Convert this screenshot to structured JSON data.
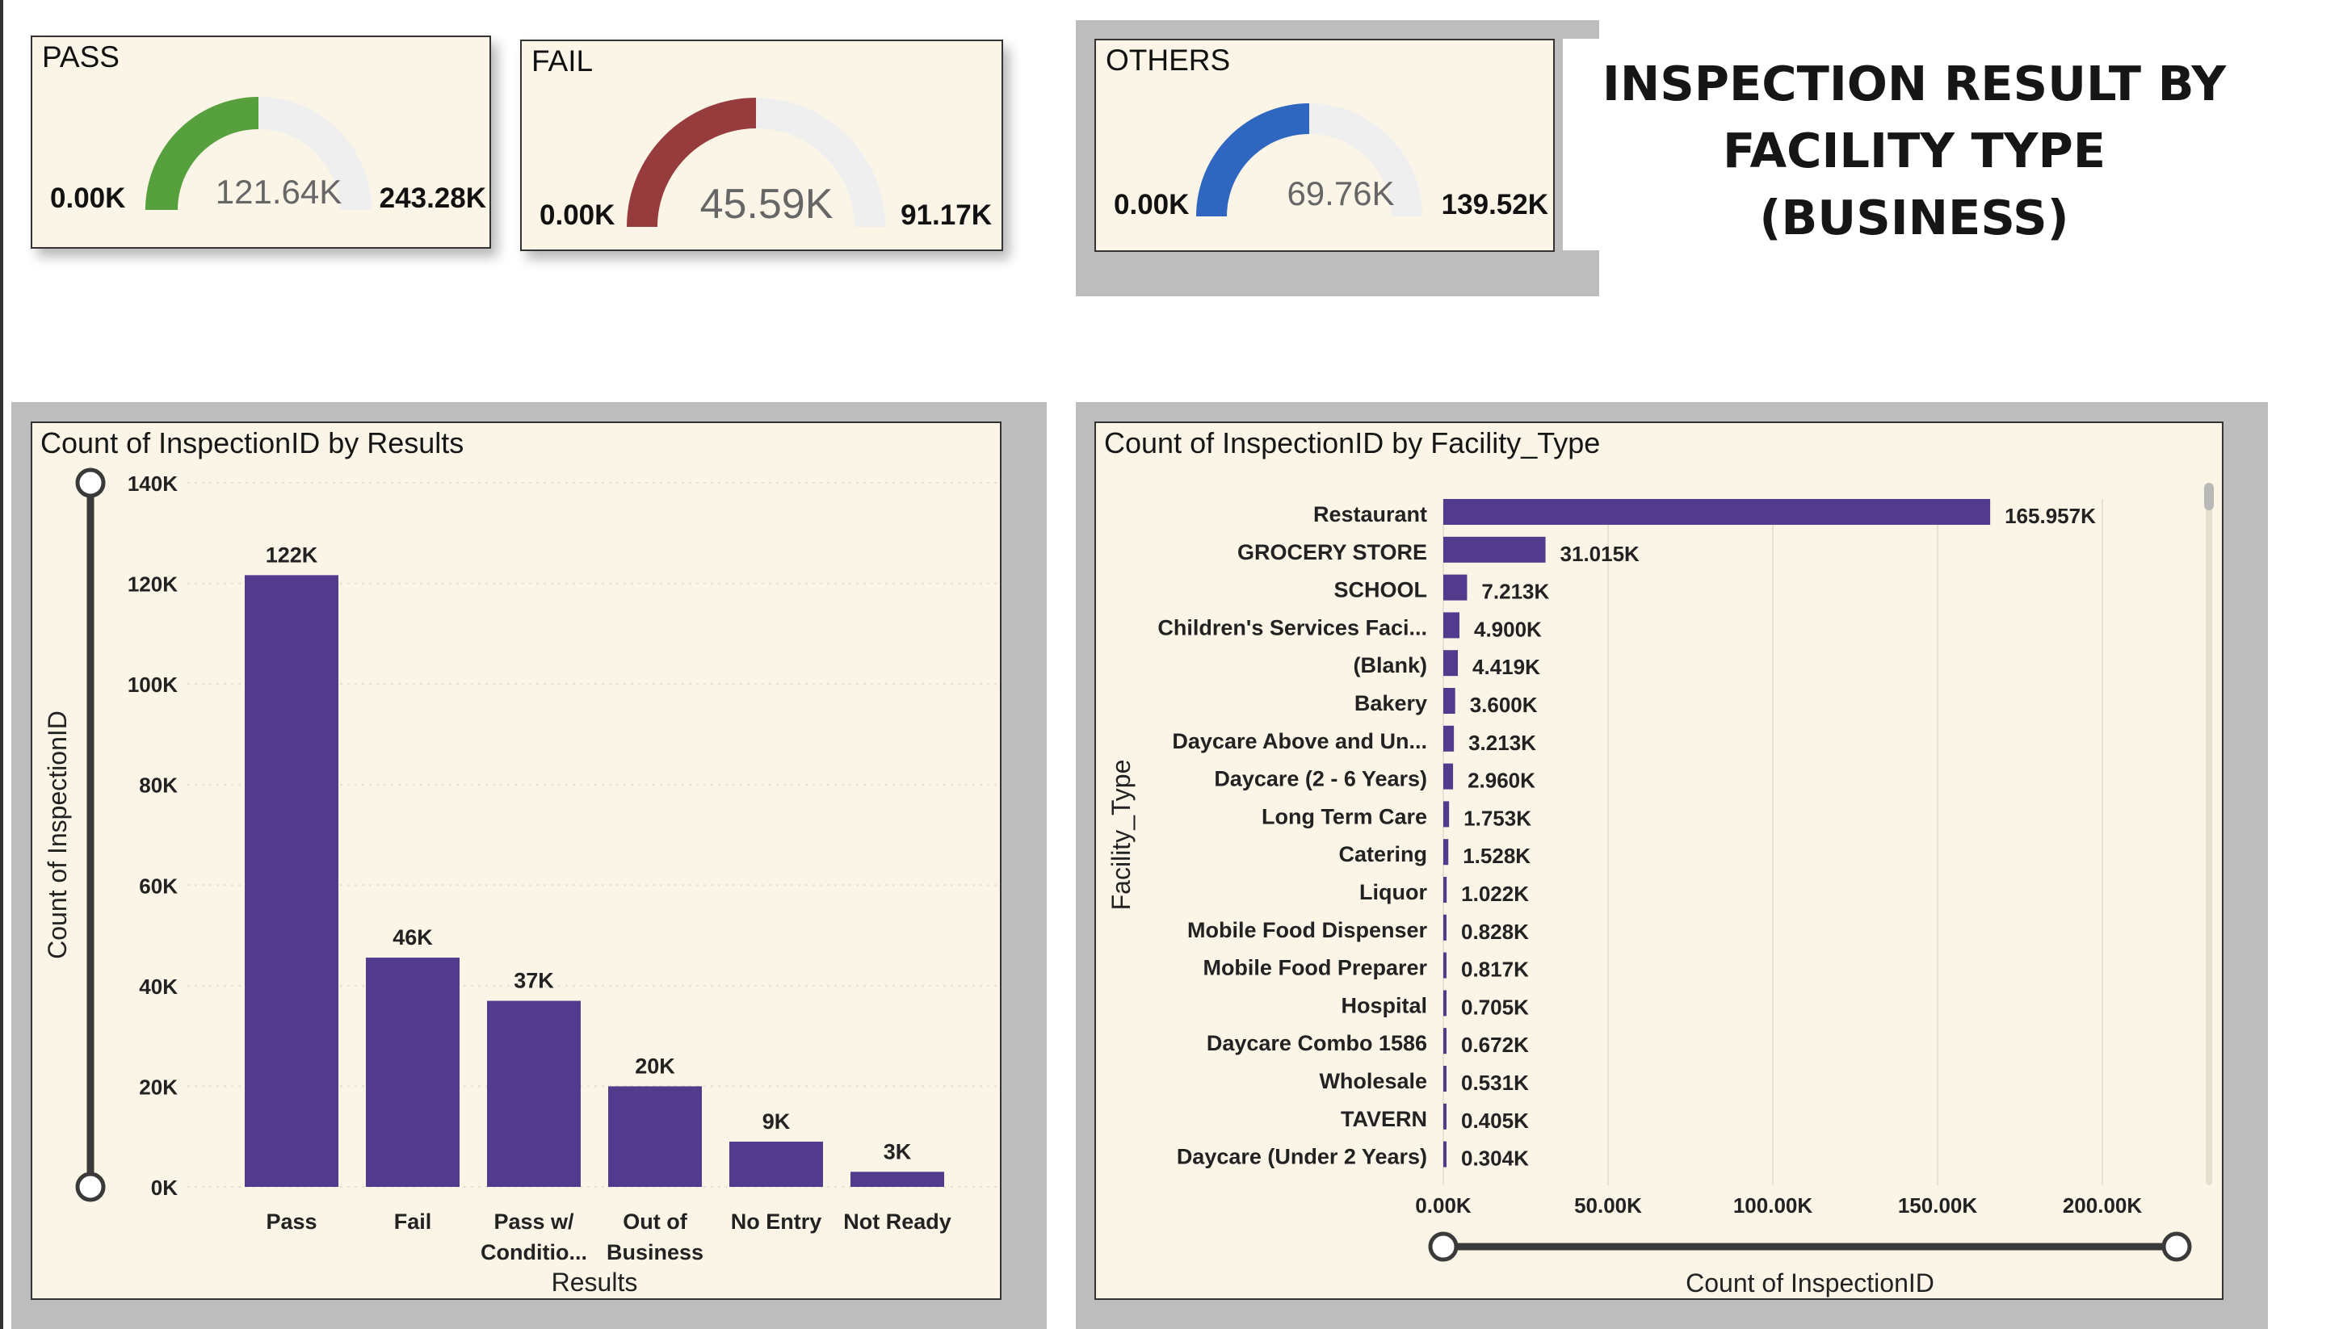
{
  "page_title_line1": "INSPECTION RESULT BY",
  "page_title_line2": "FACILITY TYPE (BUSINESS)",
  "colors": {
    "card_bg": "#fbf5e7",
    "frame_gray": "#bdbdbd",
    "bar": "#523a8c",
    "gauge_track": "#efefef",
    "pass_gauge": "#56a03d",
    "fail_gauge": "#973c3c",
    "others_gauge": "#2e66c0"
  },
  "kpis": {
    "pass": {
      "title": "PASS",
      "min": "0.00K",
      "value_label": "121.64K",
      "max": "243.28K",
      "value": 121.64,
      "maximum": 243.28,
      "color": "#56a03d"
    },
    "fail": {
      "title": "FAIL",
      "min": "0.00K",
      "value_label": "45.59K",
      "max": "91.17K",
      "value": 45.59,
      "maximum": 91.17,
      "color": "#973c3c"
    },
    "others": {
      "title": "OTHERS",
      "min": "0.00K",
      "value_label": "69.76K",
      "max": "139.52K",
      "value": 69.76,
      "maximum": 139.52,
      "color": "#2e66c0"
    }
  },
  "chart_data": [
    {
      "type": "bar",
      "title": "Count of InspectionID by Results",
      "xlabel": "Results",
      "ylabel": "Count of InspectionID",
      "ylim": [
        0,
        140000
      ],
      "yticks": [
        "0K",
        "20K",
        "40K",
        "60K",
        "80K",
        "100K",
        "120K",
        "140K"
      ],
      "ytick_values": [
        0,
        20000,
        40000,
        60000,
        80000,
        100000,
        120000,
        140000
      ],
      "categories": [
        [
          "Pass"
        ],
        [
          "Fail"
        ],
        [
          "Pass w/",
          "Conditio..."
        ],
        [
          "Out of",
          "Business"
        ],
        [
          "No Entry"
        ],
        [
          "Not Ready"
        ]
      ],
      "values": [
        121640,
        45590,
        37000,
        20000,
        9000,
        3000
      ],
      "data_labels": [
        "122K",
        "46K",
        "37K",
        "20K",
        "9K",
        "3K"
      ],
      "grid": true
    },
    {
      "type": "bar",
      "orientation": "horizontal",
      "title": "Count of InspectionID by Facility_Type",
      "xlabel": "Count of InspectionID",
      "ylabel": "Facility_Type",
      "xlim": [
        0,
        200000
      ],
      "xticks": [
        "0.00K",
        "50.00K",
        "100.00K",
        "150.00K",
        "200.00K"
      ],
      "xtick_values": [
        0,
        50000,
        100000,
        150000,
        200000
      ],
      "categories": [
        "Restaurant",
        "GROCERY STORE",
        "SCHOOL",
        "Children's Services Faci...",
        "(Blank)",
        "Bakery",
        "Daycare Above and Un...",
        "Daycare (2 - 6 Years)",
        "Long Term Care",
        "Catering",
        "Liquor",
        "Mobile Food Dispenser",
        "Mobile Food Preparer",
        "Hospital",
        "Daycare Combo 1586",
        "Wholesale",
        "TAVERN",
        "Daycare (Under 2 Years)"
      ],
      "values": [
        165957,
        31015,
        7213,
        4900,
        4419,
        3600,
        3213,
        2960,
        1753,
        1528,
        1022,
        828,
        817,
        705,
        672,
        531,
        405,
        304
      ],
      "data_labels": [
        "165.957K",
        "31.015K",
        "7.213K",
        "4.900K",
        "4.419K",
        "3.600K",
        "3.213K",
        "2.960K",
        "1.753K",
        "1.528K",
        "1.022K",
        "0.828K",
        "0.817K",
        "0.705K",
        "0.672K",
        "0.531K",
        "0.405K",
        "0.304K"
      ],
      "grid": true
    }
  ]
}
